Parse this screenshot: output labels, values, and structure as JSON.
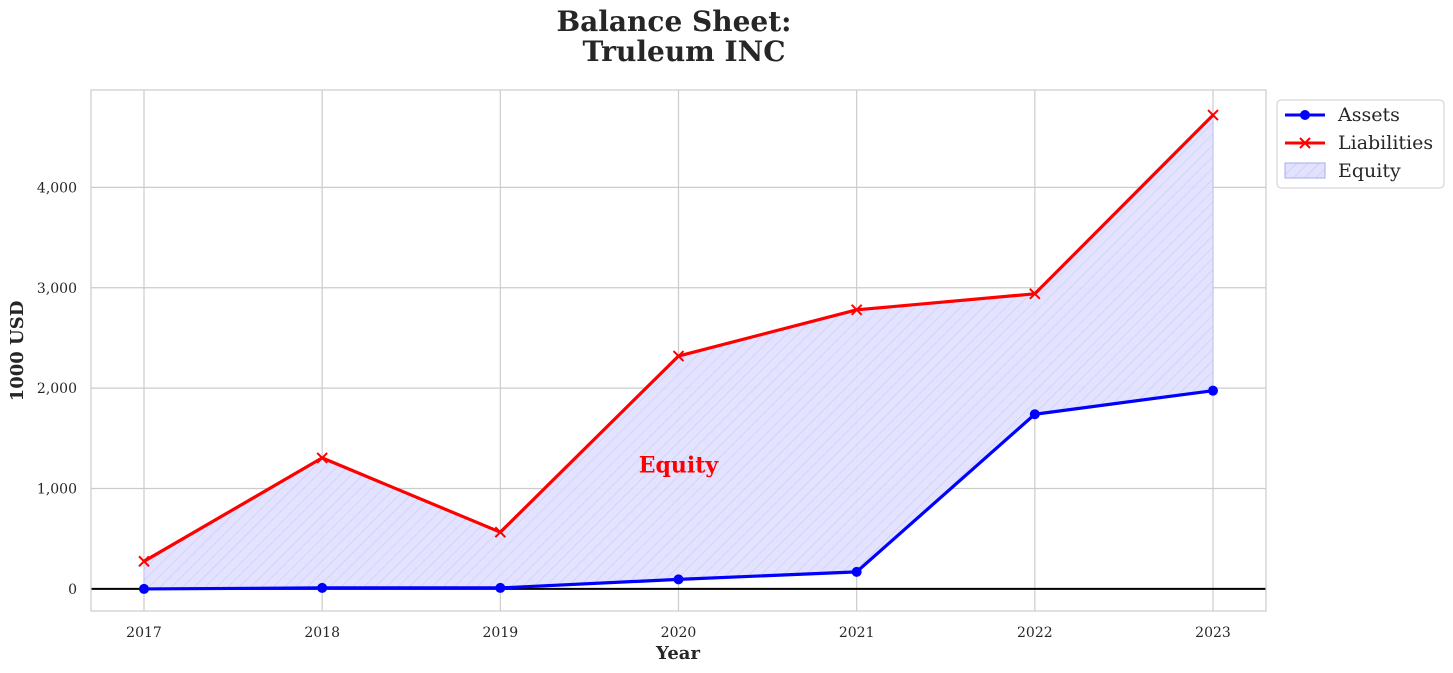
{
  "chart_data": {
    "type": "line",
    "title_line1": "Balance Sheet:",
    "title_line2": "Truleum INC",
    "xlabel": "Year",
    "ylabel": "1000 USD",
    "x": [
      "2017",
      "2018",
      "2019",
      "2020",
      "2021",
      "2022",
      "2023"
    ],
    "ylim": [
      -220,
      4970
    ],
    "yticks": [
      0,
      1000,
      2000,
      3000,
      4000
    ],
    "ytick_labels": [
      "0",
      "1,000",
      "2,000",
      "3,000",
      "4,000"
    ],
    "grid": true,
    "series": [
      {
        "name": "Assets",
        "color": "#0000ff",
        "marker": "circle",
        "values": [
          0,
          10,
          10,
          95,
          170,
          1740,
          1975
        ]
      },
      {
        "name": "Liabilities",
        "color": "#ff0000",
        "marker": "x",
        "values": [
          275,
          1305,
          565,
          2320,
          2780,
          2940,
          4720
        ]
      }
    ],
    "fill": {
      "name": "Equity",
      "between": [
        "Assets",
        "Liabilities"
      ],
      "color": "#e2e2ff",
      "hatch": "diagonal"
    },
    "annotation": {
      "text": "Equity",
      "x": "2020",
      "y": 1220,
      "color": "#ff0000"
    },
    "legend_position": "upper-right-outside",
    "reference_line": {
      "y": 0,
      "color": "#000000"
    }
  }
}
